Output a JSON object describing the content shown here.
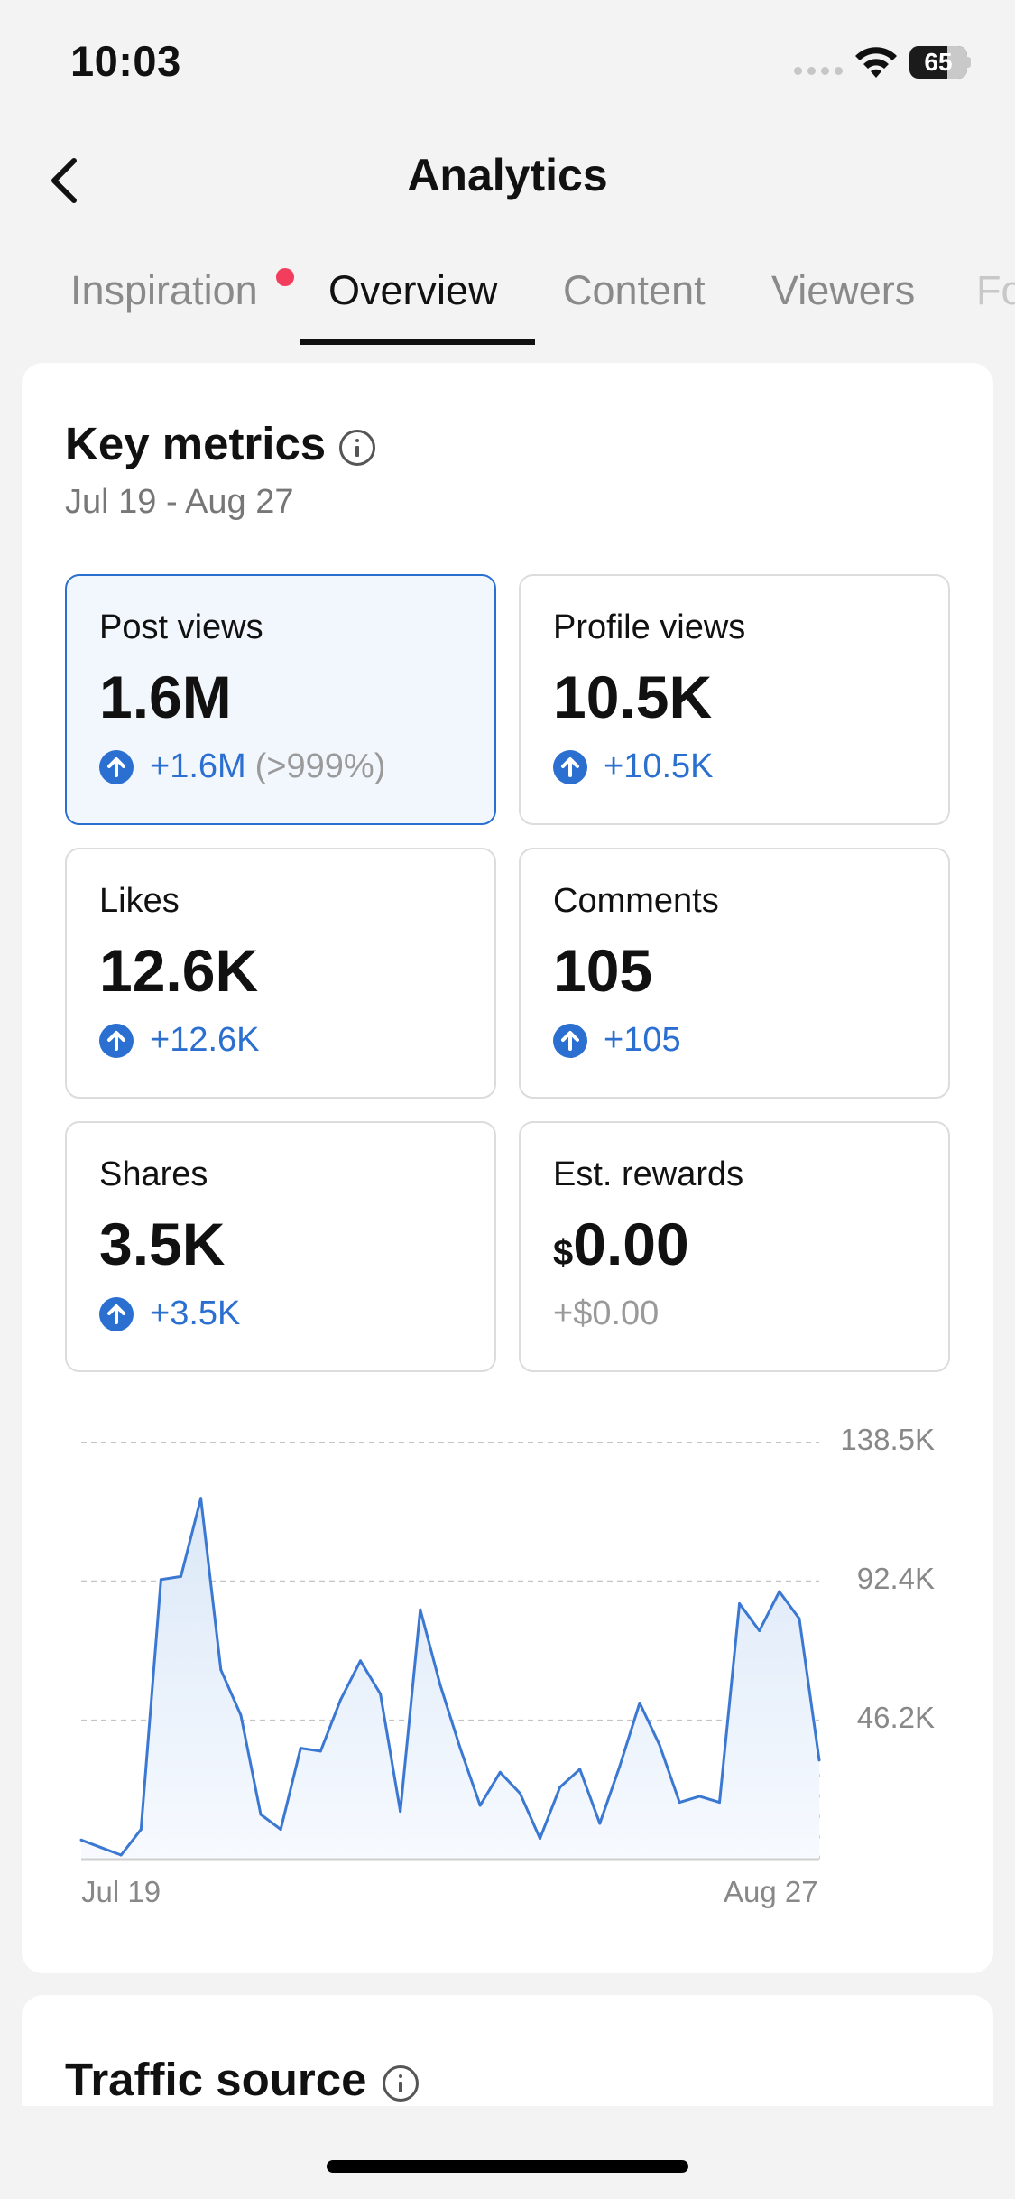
{
  "status_bar": {
    "time": "10:03",
    "battery": "65"
  },
  "header": {
    "title": "Analytics"
  },
  "tabs": [
    {
      "label": "Inspiration",
      "has_dot": true
    },
    {
      "label": "Overview",
      "active": true
    },
    {
      "label": "Content"
    },
    {
      "label": "Viewers"
    },
    {
      "label": "Fo"
    }
  ],
  "key_metrics": {
    "title": "Key metrics",
    "date_range": "Jul 19 - Aug 27",
    "items": [
      {
        "label": "Post views",
        "value": "1.6M",
        "change": "+1.6M",
        "change_pct": "(>999%)",
        "selected": true
      },
      {
        "label": "Profile views",
        "value": "10.5K",
        "change": "+10.5K"
      },
      {
        "label": "Likes",
        "value": "12.6K",
        "change": "+12.6K"
      },
      {
        "label": "Comments",
        "value": "105",
        "change": "+105"
      },
      {
        "label": "Shares",
        "value": "3.5K",
        "change": "+3.5K"
      },
      {
        "label": "Est. rewards",
        "currency": "$",
        "value": "0.00",
        "change": "+$0.00"
      }
    ]
  },
  "chart_data": {
    "type": "area",
    "x_start_label": "Jul 19",
    "x_end_label": "Aug 27",
    "y_ticks": [
      "138.5K",
      "92.4K",
      "46.2K"
    ],
    "y_tick_values": [
      138500,
      92400,
      46200
    ],
    "ylim": [
      0,
      138500
    ],
    "grid": true,
    "colors": {
      "line": "#3b78d2",
      "fill_top": "#dbe8f7",
      "fill_bottom": "#f7faff"
    },
    "series": [
      {
        "values": [
          6500,
          4000,
          1500,
          10000,
          93000,
          94000,
          120000,
          63000,
          48000,
          15000,
          10000,
          37000,
          36000,
          53000,
          66000,
          55000,
          16000,
          83000,
          58000,
          37000,
          18000,
          29000,
          22000,
          7000,
          24000,
          30000,
          12000,
          31000,
          52000,
          38000,
          19000,
          21000,
          19000,
          85000,
          76000,
          89000,
          80000,
          33000
        ]
      }
    ],
    "partial_last_day": true
  },
  "traffic_source": {
    "title": "Traffic source"
  }
}
